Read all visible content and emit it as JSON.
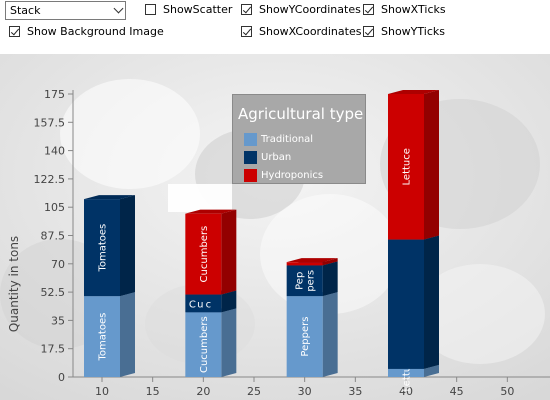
{
  "toolbar": {
    "mode_select": {
      "value": "Stack"
    },
    "checkboxes": [
      {
        "label": "ShowScatter",
        "checked": false
      },
      {
        "label": "ShowYCoordinates",
        "checked": true
      },
      {
        "label": "ShowXTicks",
        "checked": true
      },
      {
        "label": "Show Background Image",
        "checked": true
      },
      {
        "label": "ShowXCoordinates",
        "checked": true
      },
      {
        "label": "ShowYTicks",
        "checked": true
      }
    ]
  },
  "legend": {
    "title": "Agricultural type",
    "items": [
      {
        "label": "Traditional",
        "color": "#6699cc"
      },
      {
        "label": "Urban",
        "color": "#003366"
      },
      {
        "label": "Hydroponics",
        "color": "#cc0000"
      }
    ]
  },
  "chart_data": {
    "type": "bar",
    "stacked": true,
    "ylabel": "Quantity in tons",
    "xlim": [
      5,
      55
    ],
    "ylim": [
      0,
      175
    ],
    "x_ticks": [
      10,
      15,
      20,
      25,
      30,
      35,
      40,
      45,
      50
    ],
    "y_ticks": [
      "0",
      "17.5",
      "35",
      "52.5",
      "70",
      "87.5",
      "105",
      "122.5",
      "140",
      "157.5",
      "175"
    ],
    "colors": {
      "Traditional": "#6699cc",
      "Urban": "#003366",
      "Hydroponics": "#cc0000"
    },
    "groups": [
      {
        "x": 10,
        "segments": [
          {
            "series": "Traditional",
            "value": 50,
            "label": "Tomatoes"
          },
          {
            "series": "Urban",
            "value": 60,
            "label": "Tomatoes"
          }
        ]
      },
      {
        "x": 20,
        "segments": [
          {
            "series": "Traditional",
            "value": 40,
            "label": "Cucumbers"
          },
          {
            "series": "Urban",
            "value": 11,
            "label": "C\nu\nc"
          },
          {
            "series": "Hydroponics",
            "value": 50,
            "label": "Cucumbers"
          }
        ]
      },
      {
        "x": 30,
        "segments": [
          {
            "series": "Traditional",
            "value": 50,
            "label": "Peppers"
          },
          {
            "series": "Urban",
            "value": 19,
            "label": "Pep\npers"
          },
          {
            "series": "Hydroponics",
            "value": 2,
            "label": ""
          }
        ]
      },
      {
        "x": 40,
        "segments": [
          {
            "series": "Traditional",
            "value": 5,
            "label": "Lettuce"
          },
          {
            "series": "Urban",
            "value": 80,
            "label": ""
          },
          {
            "series": "Hydroponics",
            "value": 90,
            "label": "Lettuce"
          }
        ]
      }
    ]
  }
}
